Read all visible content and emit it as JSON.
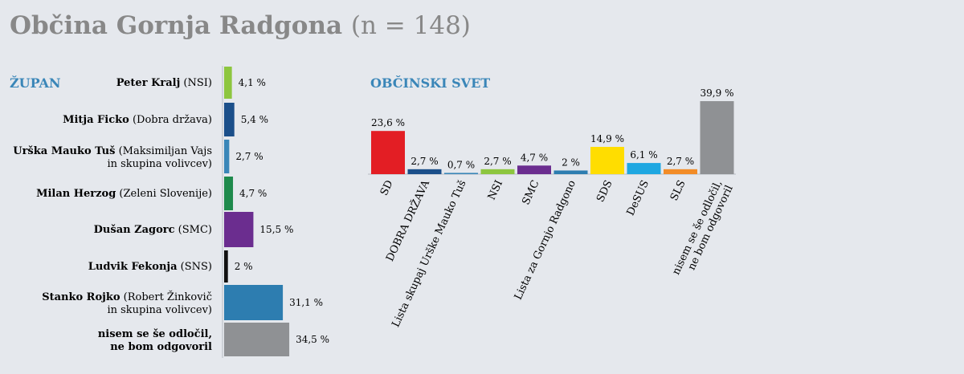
{
  "header": {
    "title": "Občina Gornja Radgona",
    "subtitle": "(n = 148)"
  },
  "colors": {
    "title": "#888888",
    "section": "#3a86b8",
    "background": "#e5e8ed"
  },
  "chart_data": [
    {
      "type": "bar",
      "orientation": "horizontal",
      "title": "ŽUPAN",
      "unit": "%",
      "categories": [
        {
          "name": "Peter Kralj",
          "party": "(NSI)",
          "name2": "",
          "party2": ""
        },
        {
          "name": "Mitja Ficko",
          "party": "(Dobra država)",
          "name2": "",
          "party2": ""
        },
        {
          "name": "Urška Mauko Tuš",
          "party": "(Maksimiljan Vajs",
          "name2": "",
          "party2": "in skupina volivcev)"
        },
        {
          "name": "Milan Herzog",
          "party": "(Zeleni Slovenije)",
          "name2": "",
          "party2": ""
        },
        {
          "name": "Dušan Zagorc",
          "party": "(SMC)",
          "name2": "",
          "party2": ""
        },
        {
          "name": "Ludvik Fekonja",
          "party": "(SNS)",
          "name2": "",
          "party2": ""
        },
        {
          "name": "Stanko Rojko",
          "party": "(Robert Žinkovič",
          "name2": "",
          "party2": "in skupina volivcev)"
        },
        {
          "name": "nisem se še odločil,",
          "party": "",
          "name2": "ne bom odgovoril",
          "party2": ""
        }
      ],
      "values": [
        4.1,
        5.4,
        2.7,
        4.7,
        15.5,
        2,
        31.1,
        34.5
      ],
      "labels": [
        "4,1 %",
        "5,4 %",
        "2,7 %",
        "4,7 %",
        "15,5 %",
        "2 %",
        "31,1 %",
        "34,5 %"
      ],
      "colors": [
        "#8dc63f",
        "#1b4f8a",
        "#3a86b8",
        "#1e8a4c",
        "#6b2d8f",
        "#111111",
        "#2d7db0",
        "#8f9194"
      ]
    },
    {
      "type": "bar",
      "orientation": "vertical",
      "title": "OBČINSKI SVET",
      "unit": "%",
      "categories": [
        [
          "SD"
        ],
        [
          "DOBRA DRŽAVA"
        ],
        [
          "Lista skupaj Urške Mauko Tuš"
        ],
        [
          "NSI"
        ],
        [
          "SMC"
        ],
        [
          "Lista za Gornjo Radgono"
        ],
        [
          "SDS"
        ],
        [
          "DeSUS"
        ],
        [
          "SLS"
        ],
        [
          "nisem se še odločil,",
          "ne bom odgovoril"
        ]
      ],
      "values": [
        23.6,
        2.7,
        0.7,
        2.7,
        4.7,
        2,
        14.9,
        6.1,
        2.7,
        39.9
      ],
      "labels": [
        "23,6 %",
        "2,7 %",
        "0,7 %",
        "2,7 %",
        "4,7 %",
        "2 %",
        "14,9 %",
        "6,1 %",
        "2,7 %",
        "39,9 %"
      ],
      "colors": [
        "#e31e24",
        "#1b4f8a",
        "#3a86b8",
        "#8dc63f",
        "#6b2d8f",
        "#2d7db0",
        "#ffdd00",
        "#1ea7e1",
        "#f28c28",
        "#8f9194"
      ]
    }
  ]
}
